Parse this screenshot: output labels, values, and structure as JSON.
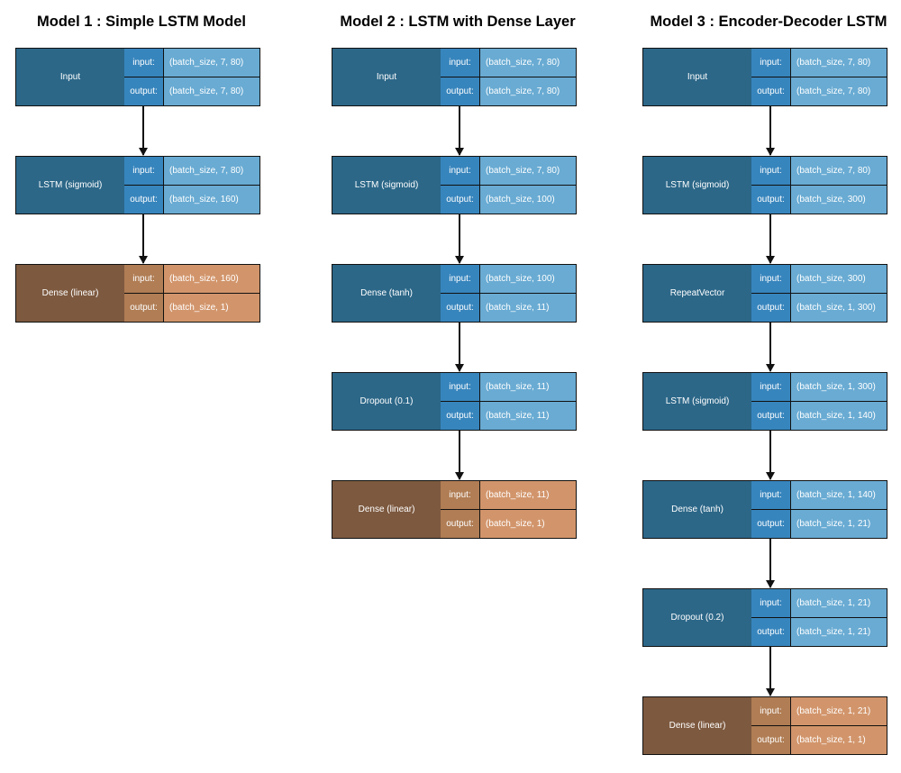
{
  "models": [
    {
      "title": "Model 1 : Simple LSTM Model",
      "layers": [
        {
          "name": "Input",
          "input": "(batch_size, 7, 80)",
          "output": "(batch_size, 7, 80)",
          "color": "blue"
        },
        {
          "name": "LSTM (sigmoid)",
          "input": "(batch_size, 7, 80)",
          "output": "(batch_size, 160)",
          "color": "blue"
        },
        {
          "name": "Dense (linear)",
          "input": "(batch_size, 160)",
          "output": "(batch_size, 1)",
          "color": "brown"
        }
      ]
    },
    {
      "title": "Model 2 : LSTM with Dense Layer",
      "layers": [
        {
          "name": "Input",
          "input": "(batch_size, 7, 80)",
          "output": "(batch_size, 7, 80)",
          "color": "blue"
        },
        {
          "name": "LSTM (sigmoid)",
          "input": "(batch_size, 7, 80)",
          "output": "(batch_size, 100)",
          "color": "blue"
        },
        {
          "name": "Dense (tanh)",
          "input": "(batch_size, 100)",
          "output": "(batch_size, 11)",
          "color": "blue"
        },
        {
          "name": "Dropout (0.1)",
          "input": "(batch_size, 11)",
          "output": "(batch_size, 11)",
          "color": "blue"
        },
        {
          "name": "Dense (linear)",
          "input": "(batch_size, 11)",
          "output": "(batch_size, 1)",
          "color": "brown"
        }
      ]
    },
    {
      "title": "Model 3 : Encoder-Decoder LSTM",
      "layers": [
        {
          "name": "Input",
          "input": "(batch_size, 7, 80)",
          "output": "(batch_size, 7, 80)",
          "color": "blue"
        },
        {
          "name": "LSTM (sigmoid)",
          "input": "(batch_size, 7, 80)",
          "output": "(batch_size, 300)",
          "color": "blue"
        },
        {
          "name": "RepeatVector",
          "input": "(batch_size, 300)",
          "output": "(batch_size, 1, 300)",
          "color": "blue"
        },
        {
          "name": "LSTM (sigmoid)",
          "input": "(batch_size, 1, 300)",
          "output": "(batch_size, 1, 140)",
          "color": "blue"
        },
        {
          "name": "Dense (tanh)",
          "input": "(batch_size, 1, 140)",
          "output": "(batch_size, 1, 21)",
          "color": "blue"
        },
        {
          "name": "Dropout (0.2)",
          "input": "(batch_size, 1, 21)",
          "output": "(batch_size, 1, 21)",
          "color": "blue"
        },
        {
          "name": "Dense (linear)",
          "input": "(batch_size, 1, 21)",
          "output": "(batch_size, 1, 1)",
          "color": "brown"
        }
      ]
    }
  ],
  "labels": {
    "input": "input:",
    "output": "output:"
  },
  "colors": {
    "blue_name": "#2c6788",
    "blue_label": "#3785bd",
    "blue_value": "#69abd3",
    "brown_name": "#7d593f",
    "brown_label": "#b07d54",
    "brown_value": "#d2956b"
  }
}
